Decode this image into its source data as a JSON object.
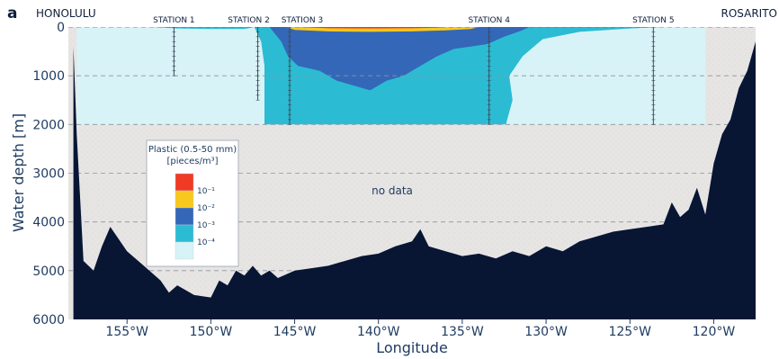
{
  "panel_letter": "a",
  "chart_data": {
    "type": "area",
    "xlabel": "Longitude",
    "ylabel": "Water depth [m]",
    "xlim": [
      -158.5,
      -117.5
    ],
    "ylim": [
      6000,
      0
    ],
    "x_ticks": [
      -155,
      -150,
      -145,
      -140,
      -135,
      -130,
      -125,
      -120
    ],
    "x_tick_labels": [
      "155°W",
      "150°W",
      "145°W",
      "140°W",
      "135°W",
      "130°W",
      "125°W",
      "120°W"
    ],
    "y_ticks": [
      0,
      1000,
      2000,
      3000,
      4000,
      5000,
      6000
    ],
    "y_tick_labels": [
      "0",
      "1000",
      "2000",
      "3000",
      "4000",
      "5000",
      "6000"
    ],
    "grid": "dashed horizontal at 1000 m intervals",
    "endpoints": [
      {
        "label": "HONOLULU",
        "lon": -157.8
      },
      {
        "label": "ROSARITO",
        "lon": -117.3
      }
    ],
    "stations": [
      {
        "label": "STATION 1",
        "lon": -152.2,
        "max_depth": 1000
      },
      {
        "label": "STATION 2",
        "lon": -147.2,
        "max_depth": 1500
      },
      {
        "label": "STATION 3",
        "lon": -145.3,
        "max_depth": 2000
      },
      {
        "label": "STATION 4",
        "lon": -133.4,
        "max_depth": 2000
      },
      {
        "label": "STATION 5",
        "lon": -123.6,
        "max_depth": 2000
      }
    ],
    "sampled_region": {
      "lon_range": [
        -158,
        -120.5
      ],
      "depth_range": [
        0,
        2000
      ]
    },
    "concentration_layers": [
      {
        "level": "1e-4 to 1e-3",
        "color": "#2bbcd4",
        "points": [
          [
            -147.4,
            0
          ],
          [
            -147.0,
            300
          ],
          [
            -146.8,
            800
          ],
          [
            -146.8,
            2000
          ],
          [
            -132.4,
            2000
          ],
          [
            -132.0,
            1500
          ],
          [
            -132.2,
            1000
          ],
          [
            -131.4,
            600
          ],
          [
            -130.2,
            250
          ],
          [
            -128.0,
            100
          ],
          [
            -125.0,
            30
          ],
          [
            -123.0,
            0
          ]
        ]
      },
      {
        "level": "1e-3 to 1e-2",
        "color": "#3467b8",
        "points": [
          [
            -146.5,
            0
          ],
          [
            -145.8,
            300
          ],
          [
            -145.4,
            600
          ],
          [
            -144.8,
            800
          ],
          [
            -143.5,
            900
          ],
          [
            -142.5,
            1100
          ],
          [
            -141.5,
            1200
          ],
          [
            -140.5,
            1300
          ],
          [
            -139.5,
            1100
          ],
          [
            -138.5,
            1000
          ],
          [
            -137.5,
            800
          ],
          [
            -136.5,
            600
          ],
          [
            -135.5,
            450
          ],
          [
            -134.5,
            400
          ],
          [
            -133.5,
            350
          ],
          [
            -132.5,
            200
          ],
          [
            -131.5,
            80
          ],
          [
            -131.0,
            0
          ]
        ]
      },
      {
        "level": "1e-2 to 1e-1",
        "color": "#f7c81e",
        "points": [
          [
            -145.5,
            0
          ],
          [
            -145.0,
            60
          ],
          [
            -143.0,
            90
          ],
          [
            -140.5,
            100
          ],
          [
            -138.0,
            90
          ],
          [
            -136.0,
            70
          ],
          [
            -134.5,
            40
          ],
          [
            -134.0,
            0
          ]
        ]
      },
      {
        "level": ">1e-1",
        "color": "#f03a24",
        "points": [
          [
            -144.8,
            0
          ],
          [
            -143.0,
            25
          ],
          [
            -140.5,
            30
          ],
          [
            -138.0,
            25
          ],
          [
            -136.5,
            15
          ],
          [
            -136.0,
            0
          ]
        ]
      },
      {
        "level": "surface 1e-4 to 1e-3",
        "color": "#2bbcd4",
        "points": [
          [
            -153.5,
            0
          ],
          [
            -152.0,
            30
          ],
          [
            -150.0,
            40
          ],
          [
            -148.0,
            40
          ],
          [
            -147.4,
            0
          ]
        ]
      }
    ],
    "bathymetry": {
      "lon": [
        -158.2,
        -158.0,
        -157.6,
        -157.0,
        -156.5,
        -156.0,
        -155.0,
        -154.0,
        -153.0,
        -152.5,
        -152.0,
        -151.0,
        -150.0,
        -149.5,
        -149.0,
        -148.5,
        -148.0,
        -147.5,
        -147.0,
        -146.5,
        -146.0,
        -145.0,
        -144.0,
        -143.0,
        -142.0,
        -141.0,
        -140.0,
        -139.0,
        -138.0,
        -137.5,
        -137.0,
        -136.0,
        -135.0,
        -134.0,
        -133.0,
        -132.0,
        -131.0,
        -130.0,
        -129.0,
        -128.0,
        -127.0,
        -126.0,
        -125.0,
        -124.0,
        -123.0,
        -122.5,
        -122.0,
        -121.5,
        -121.0,
        -120.5,
        -120.0,
        -119.5,
        -119.0,
        -118.5,
        -118.0,
        -117.5
      ],
      "depth": [
        400,
        2200,
        4800,
        5000,
        4500,
        4100,
        4600,
        4900,
        5200,
        5450,
        5300,
        5500,
        5550,
        5200,
        5300,
        5000,
        5100,
        4900,
        5100,
        5000,
        5150,
        5000,
        4950,
        4900,
        4800,
        4700,
        4650,
        4500,
        4400,
        4150,
        4500,
        4600,
        4700,
        4650,
        4750,
        4600,
        4700,
        4500,
        4600,
        4400,
        4300,
        4200,
        4150,
        4100,
        4050,
        3600,
        3900,
        3750,
        3300,
        3850,
        2800,
        2200,
        1900,
        1250,
        900,
        300
      ]
    }
  },
  "no_data_label": "no data",
  "legend": {
    "title_line1": "Plastic (0.5-50 mm)",
    "title_line2": "[pieces/m³]",
    "colors": [
      "#f03a24",
      "#f7c81e",
      "#3467b8",
      "#2bbcd4",
      "#d8f3f7"
    ],
    "tick_labels": [
      "10⁻¹",
      "10⁻²",
      "10⁻³",
      "10⁻⁴"
    ]
  },
  "colors": {
    "seafloor": "#081634",
    "no_data_background": "#e7e5e4",
    "sampled_background": "#d8f3f7",
    "axis_text": "#1d3a5f"
  }
}
